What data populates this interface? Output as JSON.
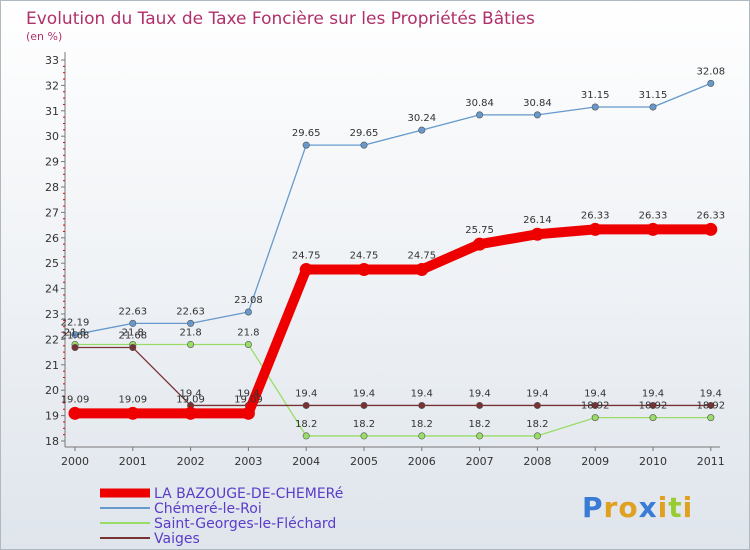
{
  "chart_data": {
    "type": "line",
    "title": "Evolution du Taux de Taxe Foncière sur les Propriétés Bâties",
    "subtitle": "(en %)",
    "xlabel": "",
    "ylabel": "",
    "ylim": [
      18,
      33
    ],
    "yticks": [
      18,
      19,
      20,
      21,
      22,
      23,
      24,
      25,
      26,
      27,
      28,
      29,
      30,
      31,
      32,
      33
    ],
    "categories": [
      "2000",
      "2001",
      "2002",
      "2003",
      "2004",
      "2005",
      "2006",
      "2007",
      "2008",
      "2009",
      "2010",
      "2011"
    ],
    "grid": false,
    "legend_position": "bottom-left",
    "series": [
      {
        "name": "LA BAZOUGE-DE-CHEMERé",
        "color": "#ee0000",
        "values": [
          19.09,
          19.09,
          19.09,
          19.09,
          24.75,
          24.75,
          24.75,
          25.75,
          26.14,
          26.33,
          26.33,
          26.33
        ],
        "labels": [
          "19.09",
          "19.09",
          "19.09",
          "19.09",
          "24.75",
          "24.75",
          "24.75",
          "25.75",
          "26.14",
          "26.33",
          "26.33",
          "26.33"
        ]
      },
      {
        "name": "Chémeré-le-Roi",
        "color": "#6699cc",
        "values": [
          22.19,
          22.63,
          22.63,
          23.08,
          29.65,
          29.65,
          30.24,
          30.84,
          30.84,
          31.15,
          31.15,
          32.08
        ],
        "labels": [
          "22.19",
          "22.63",
          "22.63",
          "23.08",
          "29.65",
          "29.65",
          "30.24",
          "30.84",
          "30.84",
          "31.15",
          "31.15",
          "32.08"
        ]
      },
      {
        "name": "Saint-Georges-le-Fléchard",
        "color": "#99dd66",
        "values": [
          21.8,
          21.8,
          21.8,
          21.8,
          18.2,
          18.2,
          18.2,
          18.2,
          18.2,
          18.92,
          18.92,
          18.92
        ],
        "labels": [
          "21.8",
          "21.8",
          "21.8",
          "21.8",
          "18.2",
          "18.2",
          "18.2",
          "18.2",
          "18.2",
          "18.92",
          "18.92",
          "18.92"
        ]
      },
      {
        "name": "Vaiges",
        "color": "#773333",
        "values": [
          21.68,
          21.68,
          19.4,
          19.4,
          19.4,
          19.4,
          19.4,
          19.4,
          19.4,
          19.4,
          19.4,
          19.4
        ],
        "labels": [
          "21.68",
          "21.68",
          "19.4",
          "19.4",
          "19.4",
          "19.4",
          "19.4",
          "19.4",
          "19.4",
          "19.4",
          "19.4",
          "19.4"
        ]
      }
    ]
  },
  "colors": {
    "title": "#b0306a",
    "background_top": "#ffffff",
    "background_bottom": "#dde3ea",
    "axis_tick_red": "#ee0000"
  },
  "logo": {
    "letters": [
      "P",
      "r",
      "o",
      "x",
      "i",
      "t",
      "i"
    ],
    "letter_colors": [
      "#3a7bd5",
      "#e0a020",
      "#e0a020",
      "#3a7bd5",
      "#e0a020",
      "#99cc33",
      "#e0a020"
    ]
  }
}
